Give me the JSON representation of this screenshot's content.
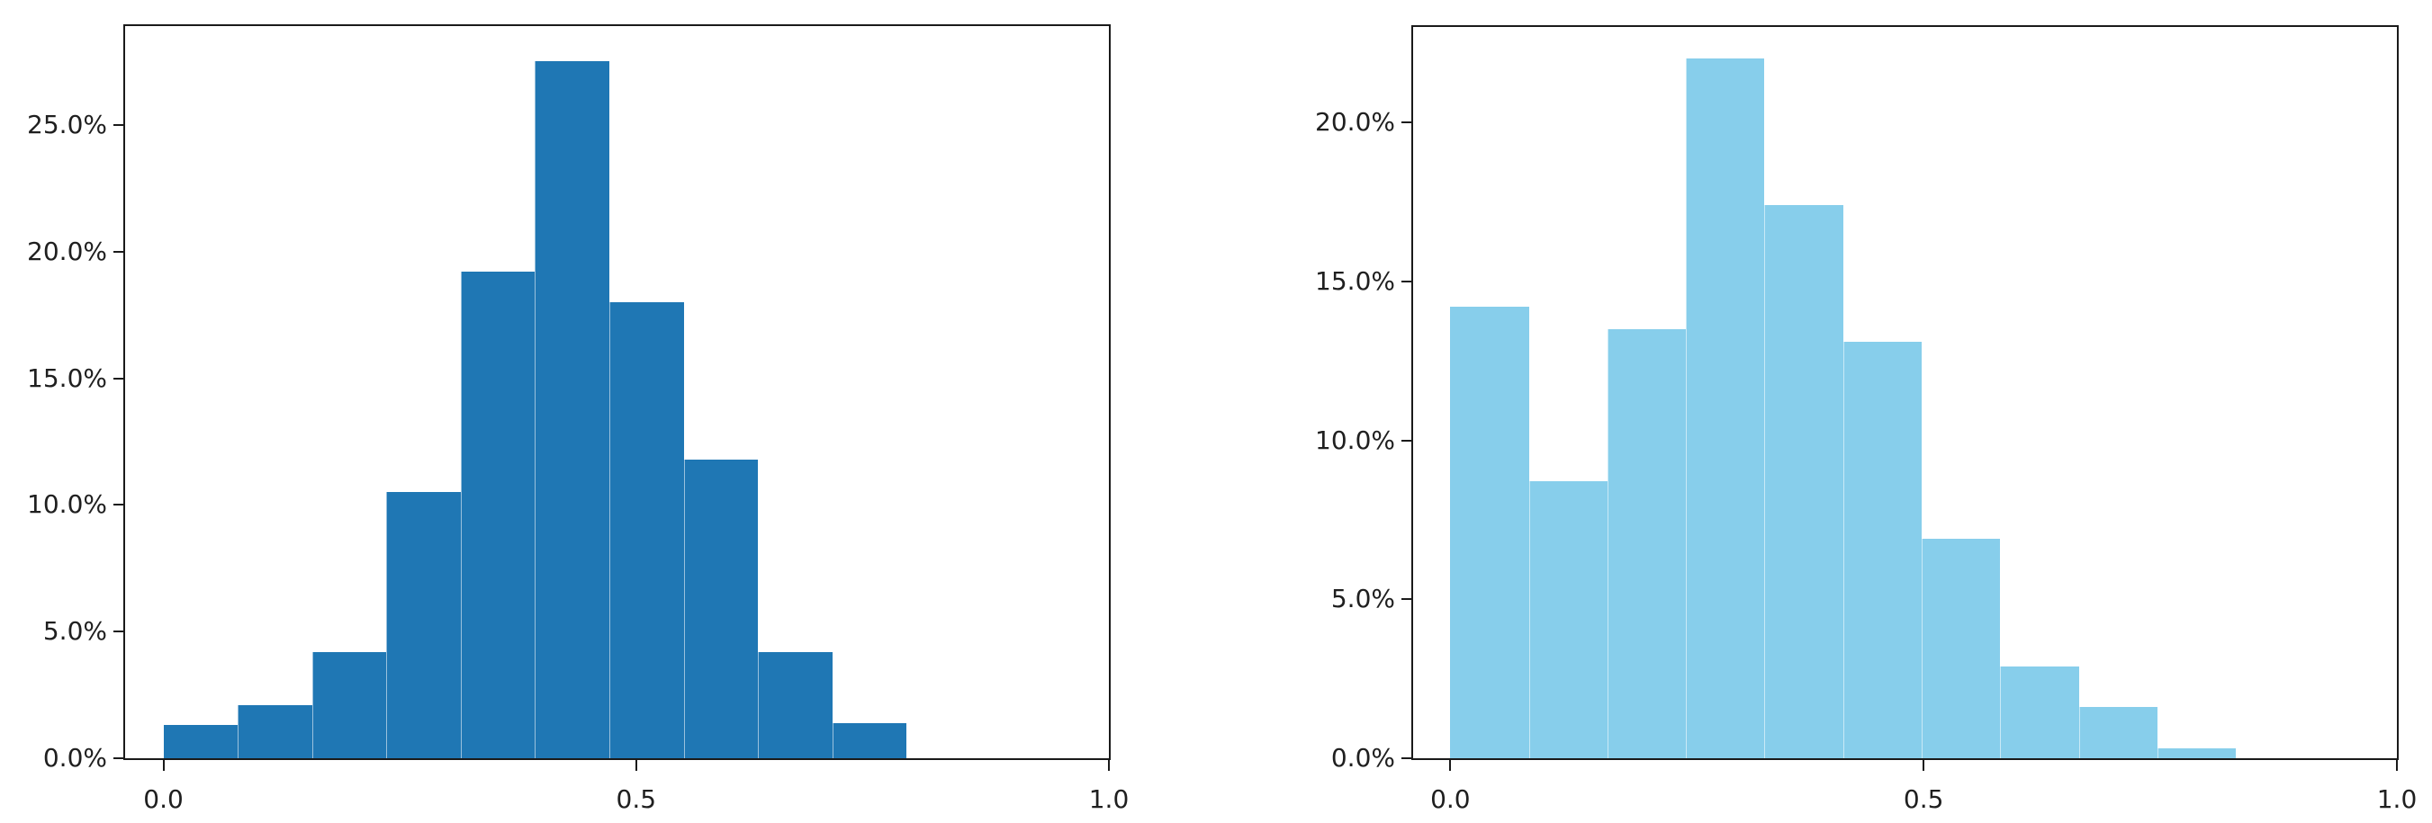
{
  "figure": {
    "background": "#ffffff",
    "description": "Two side-by-side percentage histograms"
  },
  "chart_data": [
    {
      "type": "bar",
      "subtype": "histogram",
      "panel": "left",
      "title": "",
      "xlabel": "",
      "ylabel": "",
      "bar_color": "#1f77b4",
      "grid": false,
      "legend_position": "none",
      "xlim": [
        -0.0405,
        1.0
      ],
      "ylim": [
        0,
        28.9
      ],
      "bin_start": 0.0,
      "bin_width": 0.0786,
      "values_percent": [
        1.3,
        2.1,
        4.2,
        10.5,
        19.2,
        27.5,
        18.0,
        11.8,
        4.2,
        1.4
      ],
      "yticks": [
        {
          "v": 0,
          "label": "0.0%"
        },
        {
          "v": 5,
          "label": "5.0%"
        },
        {
          "v": 10,
          "label": "10.0%"
        },
        {
          "v": 15,
          "label": "15.0%"
        },
        {
          "v": 20,
          "label": "20.0%"
        },
        {
          "v": 25,
          "label": "25.0%"
        }
      ],
      "xticks": [
        {
          "v": 0.0,
          "label": "0.0"
        },
        {
          "v": 0.5,
          "label": "0.5"
        },
        {
          "v": 1.0,
          "label": "1.0"
        }
      ]
    },
    {
      "type": "bar",
      "subtype": "histogram",
      "panel": "right",
      "title": "",
      "xlabel": "",
      "ylabel": "",
      "bar_color": "#87ceeb",
      "grid": false,
      "legend_position": "none",
      "xlim": [
        -0.0393,
        1.0
      ],
      "ylim": [
        0,
        23.0
      ],
      "bin_start": 0.0,
      "bin_width": 0.083,
      "values_percent": [
        14.2,
        8.7,
        13.5,
        22.0,
        17.4,
        13.1,
        6.9,
        2.9,
        1.6,
        0.3
      ],
      "yticks": [
        {
          "v": 0,
          "label": "0.0%"
        },
        {
          "v": 5,
          "label": "5.0%"
        },
        {
          "v": 10,
          "label": "10.0%"
        },
        {
          "v": 15,
          "label": "15.0%"
        },
        {
          "v": 20,
          "label": "20.0%"
        }
      ],
      "xticks": [
        {
          "v": 0.0,
          "label": "0.0"
        },
        {
          "v": 0.5,
          "label": "0.5"
        },
        {
          "v": 1.0,
          "label": "1.0"
        }
      ]
    }
  ]
}
